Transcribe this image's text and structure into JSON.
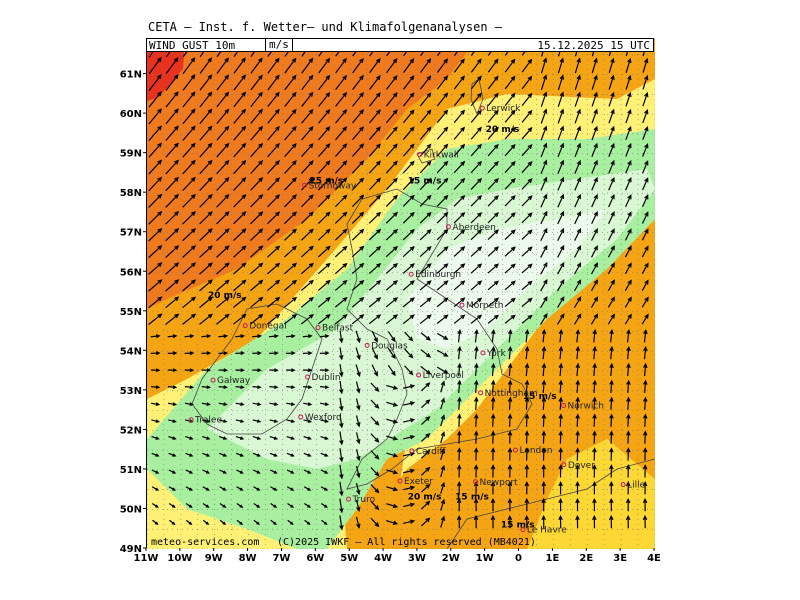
{
  "header": {
    "title": "CETA — Inst. f. Wetter— und Klimafolgenanalysen —",
    "field": "WIND GUST 10m",
    "unit": "m/s",
    "valid_time": "15.12.2025 15 UTC"
  },
  "axes": {
    "lat_labels": [
      "61N",
      "60N",
      "59N",
      "58N",
      "57N",
      "56N",
      "55N",
      "54N",
      "53N",
      "52N",
      "51N",
      "50N",
      "49N"
    ],
    "lon_labels": [
      "11W",
      "10W",
      "9W",
      "8W",
      "7W",
      "6W",
      "5W",
      "4W",
      "3W",
      "2W",
      "1W",
      "0",
      "1E",
      "2E",
      "3E",
      "4E"
    ]
  },
  "cities": [
    {
      "name": "Lerwick",
      "lon": -1.1,
      "lat": 60.15
    },
    {
      "name": "Kirkwall",
      "lon": -2.95,
      "lat": 58.98
    },
    {
      "name": "Stornoway",
      "lon": -6.35,
      "lat": 58.2
    },
    {
      "name": "Aberdeen",
      "lon": -2.1,
      "lat": 57.15
    },
    {
      "name": "Edinburgh",
      "lon": -3.2,
      "lat": 55.95
    },
    {
      "name": "Douglas",
      "lon": -4.5,
      "lat": 54.15
    },
    {
      "name": "Morpeth",
      "lon": -1.7,
      "lat": 55.17
    },
    {
      "name": "Donegal",
      "lon": -8.1,
      "lat": 54.65
    },
    {
      "name": "Belfast",
      "lon": -5.95,
      "lat": 54.6
    },
    {
      "name": "York",
      "lon": -1.08,
      "lat": 53.96
    },
    {
      "name": "Galway",
      "lon": -9.05,
      "lat": 53.27
    },
    {
      "name": "Dublin",
      "lon": -6.26,
      "lat": 53.35
    },
    {
      "name": "Liverpool",
      "lon": -2.98,
      "lat": 53.4
    },
    {
      "name": "Nottingham",
      "lon": -1.15,
      "lat": 52.95
    },
    {
      "name": "Norwich",
      "lon": 1.3,
      "lat": 52.63
    },
    {
      "name": "Wexford",
      "lon": -6.46,
      "lat": 52.34
    },
    {
      "name": "Tralee",
      "lon": -9.7,
      "lat": 52.27
    },
    {
      "name": "Cardiff",
      "lon": -3.18,
      "lat": 51.48
    },
    {
      "name": "London",
      "lon": -0.12,
      "lat": 51.5
    },
    {
      "name": "Dover",
      "lon": 1.31,
      "lat": 51.13
    },
    {
      "name": "Exeter",
      "lon": -3.53,
      "lat": 50.72
    },
    {
      "name": "Newport",
      "lon": -1.3,
      "lat": 50.7
    },
    {
      "name": "Truro",
      "lon": -5.05,
      "lat": 50.26
    },
    {
      "name": "Lille",
      "lon": 3.06,
      "lat": 50.63
    },
    {
      "name": "Le Havre",
      "lon": 0.1,
      "lat": 49.49
    }
  ],
  "annotations": [
    {
      "text": "25 m/s",
      "lon": -6.2,
      "lat": 58.25
    },
    {
      "text": "15 m/s",
      "lon": -3.3,
      "lat": 58.25
    },
    {
      "text": "20 m/s",
      "lon": -1.0,
      "lat": 59.55
    },
    {
      "text": "20 m/s",
      "lon": -9.2,
      "lat": 55.35
    },
    {
      "text": "15 m/s",
      "lon": 0.1,
      "lat": 52.8
    },
    {
      "text": "20 m/s",
      "lon": -3.3,
      "lat": 50.25
    },
    {
      "text": "15 m/s",
      "lon": -1.9,
      "lat": 50.25
    },
    {
      "text": "15 m/s",
      "lon": -0.55,
      "lat": 49.55
    }
  ],
  "legend_colors": {
    "over_25": "#e8321e",
    "20_25": "#f07a1e",
    "17_20": "#f5a514",
    "15_17": "#fdd835",
    "12_15": "#fff176",
    "10_12": "#a8f0a0",
    "under_10": "#d9f7d3",
    "lowest": "#ecfaec"
  },
  "footer": {
    "left": "meteo-services.com",
    "right": "(C)2025 IWKF — All rights reserved (MB4021)"
  }
}
